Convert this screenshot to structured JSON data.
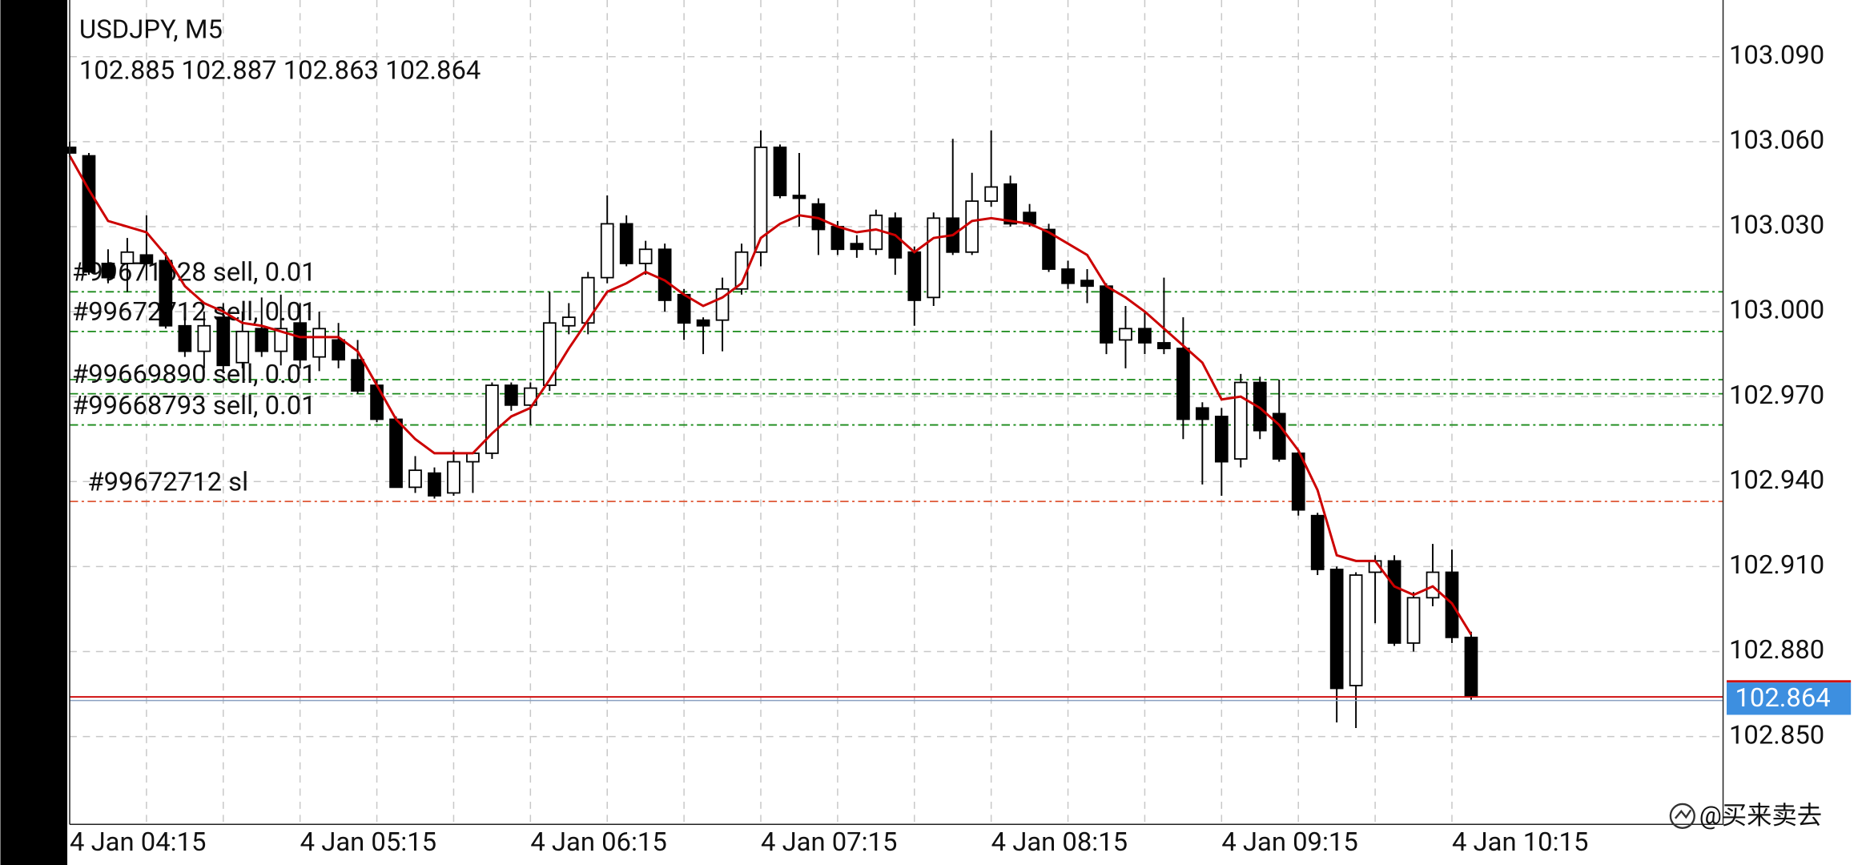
{
  "chart_data": {
    "type": "candlestick",
    "title": "USDJPY, M5",
    "watermark": "@买来卖去",
    "categories": [
      "4 Jan 04:15",
      null,
      null,
      null,
      null,
      null,
      null,
      null,
      null,
      null,
      null,
      null,
      "4 Jan 05:15",
      null,
      null,
      null,
      null,
      null,
      null,
      null,
      null,
      null,
      null,
      null,
      "4 Jan 06:15",
      null,
      null,
      null,
      null,
      null,
      null,
      null,
      null,
      null,
      null,
      null,
      "4 Jan 07:15",
      null,
      null,
      null,
      null,
      null,
      null,
      null,
      null,
      null,
      null,
      null,
      "4 Jan 08:15",
      null,
      null,
      null,
      null,
      null,
      null,
      null,
      null,
      null,
      null,
      null,
      "4 Jan 09:15",
      null,
      null,
      null,
      null,
      null,
      null,
      null,
      null,
      null,
      null,
      null,
      "4 Jan 10:15",
      null
    ],
    "open": [
      103.058,
      103.055,
      103.017,
      103.017,
      103.02,
      103.018,
      102.995,
      102.986,
      102.998,
      102.982,
      102.994,
      102.986,
      102.996,
      102.984,
      102.99,
      102.983,
      102.974,
      102.962,
      102.938,
      102.943,
      102.936,
      102.947,
      102.95,
      102.974,
      102.967,
      102.974,
      102.995,
      102.996,
      103.012,
      103.031,
      103.017,
      103.022,
      103.006,
      102.997,
      102.997,
      103.008,
      103.021,
      103.058,
      103.041,
      103.038,
      103.03,
      103.024,
      103.022,
      103.033,
      103.021,
      103.005,
      103.033,
      103.021,
      103.039,
      103.045,
      103.035,
      103.029,
      103.015,
      103.011,
      103.009,
      102.99,
      102.994,
      102.989,
      102.987,
      102.966,
      102.963,
      102.948,
      102.975,
      102.964,
      102.95,
      102.928,
      102.909,
      102.868,
      102.908,
      102.912,
      102.883,
      102.899,
      102.908,
      102.885
    ],
    "high": [
      103.06,
      103.056,
      103.022,
      103.026,
      103.034,
      103.021,
      102.998,
      103.0,
      103.003,
      103.0,
      103.005,
      103.006,
      103.003,
      103.0,
      102.996,
      102.99,
      102.976,
      102.963,
      102.949,
      102.945,
      102.951,
      102.95,
      102.975,
      102.975,
      102.975,
      103.007,
      103.003,
      103.014,
      103.041,
      103.034,
      103.025,
      103.024,
      103.008,
      102.998,
      103.012,
      103.024,
      103.064,
      103.059,
      103.056,
      103.04,
      103.032,
      103.027,
      103.036,
      103.035,
      103.023,
      103.035,
      103.061,
      103.049,
      103.064,
      103.048,
      103.038,
      103.031,
      103.018,
      103.015,
      103.01,
      103.002,
      103.0,
      103.012,
      102.998,
      102.968,
      102.966,
      102.978,
      102.977,
      102.976,
      102.951,
      102.929,
      102.91,
      102.908,
      102.914,
      102.914,
      102.901,
      102.918,
      102.916,
      102.887
    ],
    "low": [
      103.055,
      103.013,
      103.01,
      103.007,
      103.011,
      102.994,
      102.984,
      102.98,
      102.979,
      102.98,
      102.984,
      102.981,
      102.98,
      102.979,
      102.98,
      102.971,
      102.961,
      102.938,
      102.936,
      102.934,
      102.935,
      102.936,
      102.948,
      102.965,
      102.96,
      102.972,
      102.992,
      102.992,
      103.01,
      103.016,
      103.013,
      103.0,
      102.99,
      102.985,
      102.986,
      103.006,
      103.016,
      103.04,
      103.03,
      103.02,
      103.02,
      103.019,
      103.02,
      103.013,
      102.995,
      103.002,
      103.02,
      103.02,
      103.037,
      103.03,
      103.03,
      103.014,
      103.008,
      103.003,
      102.985,
      102.98,
      102.985,
      102.985,
      102.955,
      102.939,
      102.935,
      102.945,
      102.955,
      102.947,
      102.928,
      102.907,
      102.855,
      102.853,
      102.89,
      102.882,
      102.88,
      102.896,
      102.883,
      102.863
    ],
    "close": [
      103.056,
      103.014,
      103.012,
      103.021,
      103.017,
      102.995,
      102.986,
      102.995,
      102.981,
      102.993,
      102.986,
      102.994,
      102.983,
      102.994,
      102.983,
      102.972,
      102.962,
      102.938,
      102.944,
      102.935,
      102.947,
      102.95,
      102.974,
      102.967,
      102.973,
      102.996,
      102.998,
      103.012,
      103.031,
      103.017,
      103.022,
      103.004,
      102.996,
      102.995,
      103.008,
      103.021,
      103.058,
      103.041,
      103.04,
      103.029,
      103.022,
      103.022,
      103.034,
      103.019,
      103.004,
      103.033,
      103.021,
      103.039,
      103.044,
      103.031,
      103.031,
      103.015,
      103.01,
      103.009,
      102.989,
      102.994,
      102.989,
      102.987,
      102.962,
      102.962,
      102.947,
      102.975,
      102.958,
      102.948,
      102.93,
      102.909,
      102.867,
      102.907,
      102.912,
      102.883,
      102.899,
      102.908,
      102.885,
      102.864
    ],
    "up_color": "#ffffff",
    "down_color": "#000000",
    "ma": {
      "color": "#cc0000",
      "values": [
        103.055,
        103.043,
        103.032,
        103.03,
        103.028,
        103.02,
        103.009,
        103.003,
        103.0,
        102.996,
        102.995,
        102.993,
        102.991,
        102.991,
        102.991,
        102.986,
        102.974,
        102.962,
        102.955,
        102.95,
        102.95,
        102.95,
        102.957,
        102.963,
        102.966,
        102.976,
        102.987,
        102.997,
        103.007,
        103.01,
        103.014,
        103.011,
        103.006,
        103.002,
        103.005,
        103.01,
        103.026,
        103.031,
        103.034,
        103.033,
        103.03,
        103.028,
        103.029,
        103.027,
        103.021,
        103.026,
        103.027,
        103.032,
        103.033,
        103.032,
        103.031,
        103.028,
        103.024,
        103.02,
        103.009,
        103.005,
        103.0,
        102.994,
        102.988,
        102.982,
        102.969,
        102.97,
        102.966,
        102.96,
        102.951,
        102.937,
        102.914,
        102.912,
        102.912,
        102.903,
        102.9,
        102.903,
        102.897,
        102.886
      ]
    },
    "levels": [
      {
        "label": "#99671628 sell, 0.01",
        "value": 103.007,
        "color": "#1a8a1a"
      },
      {
        "label": "#99672712 sell, 0.01",
        "value": 102.993,
        "color": "#1a8a1a"
      },
      {
        "value": 102.976,
        "color": "#1a8a1a"
      },
      {
        "label": "#99669890 sell, 0.01",
        "value": 102.971,
        "color": "#1a8a1a"
      },
      {
        "label": "#99668793 sell, 0.01",
        "value": 102.96,
        "color": "#1a8a1a"
      },
      {
        "label": "#99672712 sl",
        "value": 102.933,
        "color": "#e06040"
      }
    ],
    "price_line_color": "#d01010",
    "price_box_color": "#3d8fe0",
    "ylim": [
      102.819,
      103.11
    ],
    "yticks": [
      {
        "value": 103.09,
        "label": "103.090"
      },
      {
        "value": 103.06,
        "label": "103.060"
      },
      {
        "value": 103.03,
        "label": "103.030"
      },
      {
        "value": 103.0,
        "label": "103.000"
      },
      {
        "value": 102.97,
        "label": "102.970"
      },
      {
        "value": 102.94,
        "label": "102.940"
      },
      {
        "value": 102.91,
        "label": "102.910"
      },
      {
        "value": 102.88,
        "label": "102.880"
      },
      {
        "value": 102.85,
        "label": "102.850"
      }
    ],
    "grid": true
  }
}
